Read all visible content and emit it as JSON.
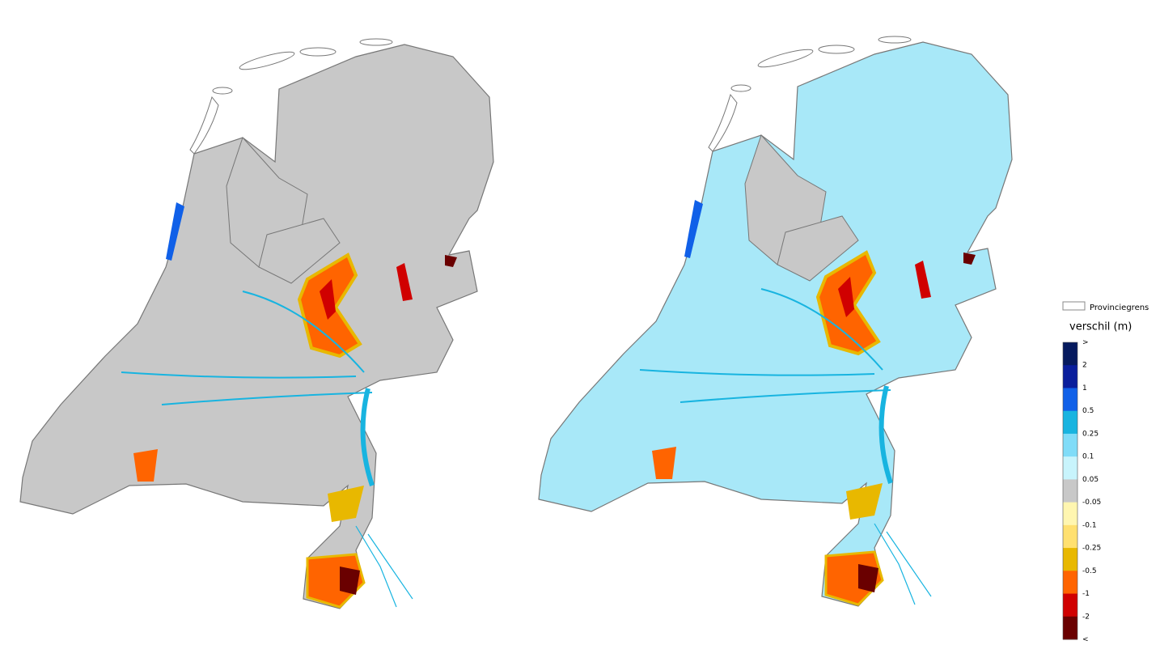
{
  "legend": {
    "boundary_label": "Provinciegrens",
    "title": "verschil (m)",
    "labels": [
      ">",
      "2",
      "1",
      "0.5",
      "0.25",
      "0.1",
      "0.05",
      "-0.05",
      "-0.1",
      "-0.25",
      "-0.5",
      "-1",
      "-2",
      "<"
    ],
    "colors": [
      "#061a5e",
      "#0a1e9c",
      "#1060e8",
      "#18b4e0",
      "#80dcf8",
      "#c8f4fc",
      "#c8c8c8",
      "#fff6b0",
      "#ffe070",
      "#e8b800",
      "#ff6400",
      "#d00000",
      "#6a0000"
    ]
  }
}
